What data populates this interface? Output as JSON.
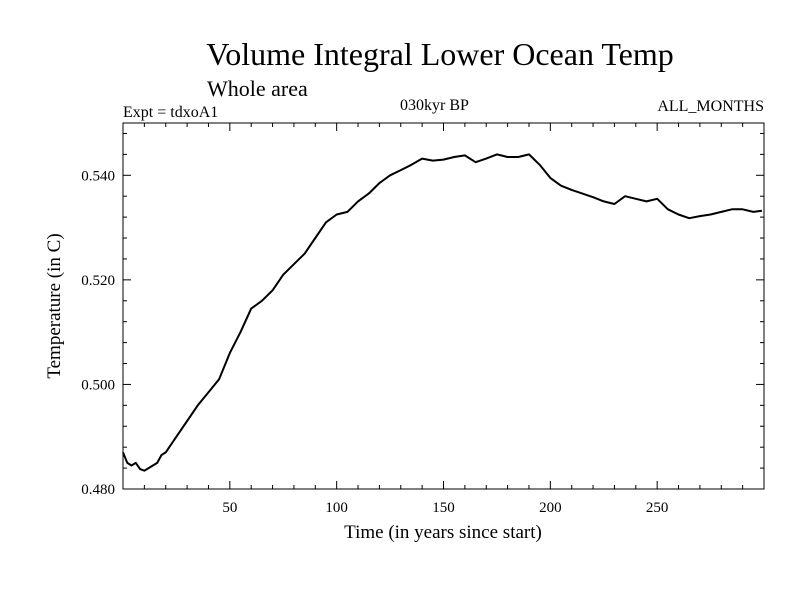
{
  "chart_data": {
    "type": "line",
    "title": "Volume Integral Lower Ocean Temp",
    "subtitle": "Whole area",
    "left_label": "Expt = tdxoA1",
    "center_label": "030kyr BP",
    "right_label": "ALL_MONTHS",
    "xlabel": "Time (in years since start)",
    "ylabel": "Temperature (in C)",
    "xlim": [
      0,
      300
    ],
    "ylim": [
      0.48,
      0.55
    ],
    "x_ticks": [
      50,
      100,
      150,
      200,
      250
    ],
    "x_tick_labels": [
      "50",
      "100",
      "150",
      "200",
      "250"
    ],
    "y_ticks": [
      0.48,
      0.5,
      0.52,
      0.54
    ],
    "y_tick_labels": [
      "0.480",
      "0.500",
      "0.520",
      "0.540"
    ],
    "grid": false,
    "series": [
      {
        "name": "Volume Integral Lower Ocean Temp",
        "x": [
          0,
          2,
          4,
          6,
          8,
          10,
          12,
          14,
          16,
          18,
          20,
          25,
          30,
          35,
          40,
          45,
          50,
          55,
          60,
          65,
          70,
          75,
          80,
          85,
          90,
          95,
          100,
          105,
          110,
          115,
          120,
          125,
          130,
          135,
          140,
          145,
          150,
          155,
          160,
          165,
          170,
          175,
          180,
          185,
          190,
          195,
          200,
          205,
          210,
          215,
          220,
          225,
          230,
          235,
          240,
          245,
          250,
          255,
          260,
          265,
          270,
          275,
          280,
          285,
          290,
          295,
          299
        ],
        "y": [
          0.487,
          0.485,
          0.4845,
          0.485,
          0.4838,
          0.4835,
          0.484,
          0.4845,
          0.485,
          0.4865,
          0.487,
          0.49,
          0.493,
          0.496,
          0.4985,
          0.501,
          0.506,
          0.51,
          0.5145,
          0.516,
          0.518,
          0.521,
          0.523,
          0.525,
          0.528,
          0.531,
          0.5325,
          0.533,
          0.535,
          0.5365,
          0.5385,
          0.54,
          0.541,
          0.542,
          0.5432,
          0.5428,
          0.543,
          0.5435,
          0.5438,
          0.5425,
          0.5432,
          0.544,
          0.5435,
          0.5435,
          0.544,
          0.542,
          0.5395,
          0.538,
          0.5372,
          0.5365,
          0.5358,
          0.535,
          0.5345,
          0.536,
          0.5355,
          0.535,
          0.5355,
          0.5335,
          0.5325,
          0.5318,
          0.5322,
          0.5325,
          0.533,
          0.5335,
          0.5335,
          0.533,
          0.5332
        ]
      }
    ]
  }
}
